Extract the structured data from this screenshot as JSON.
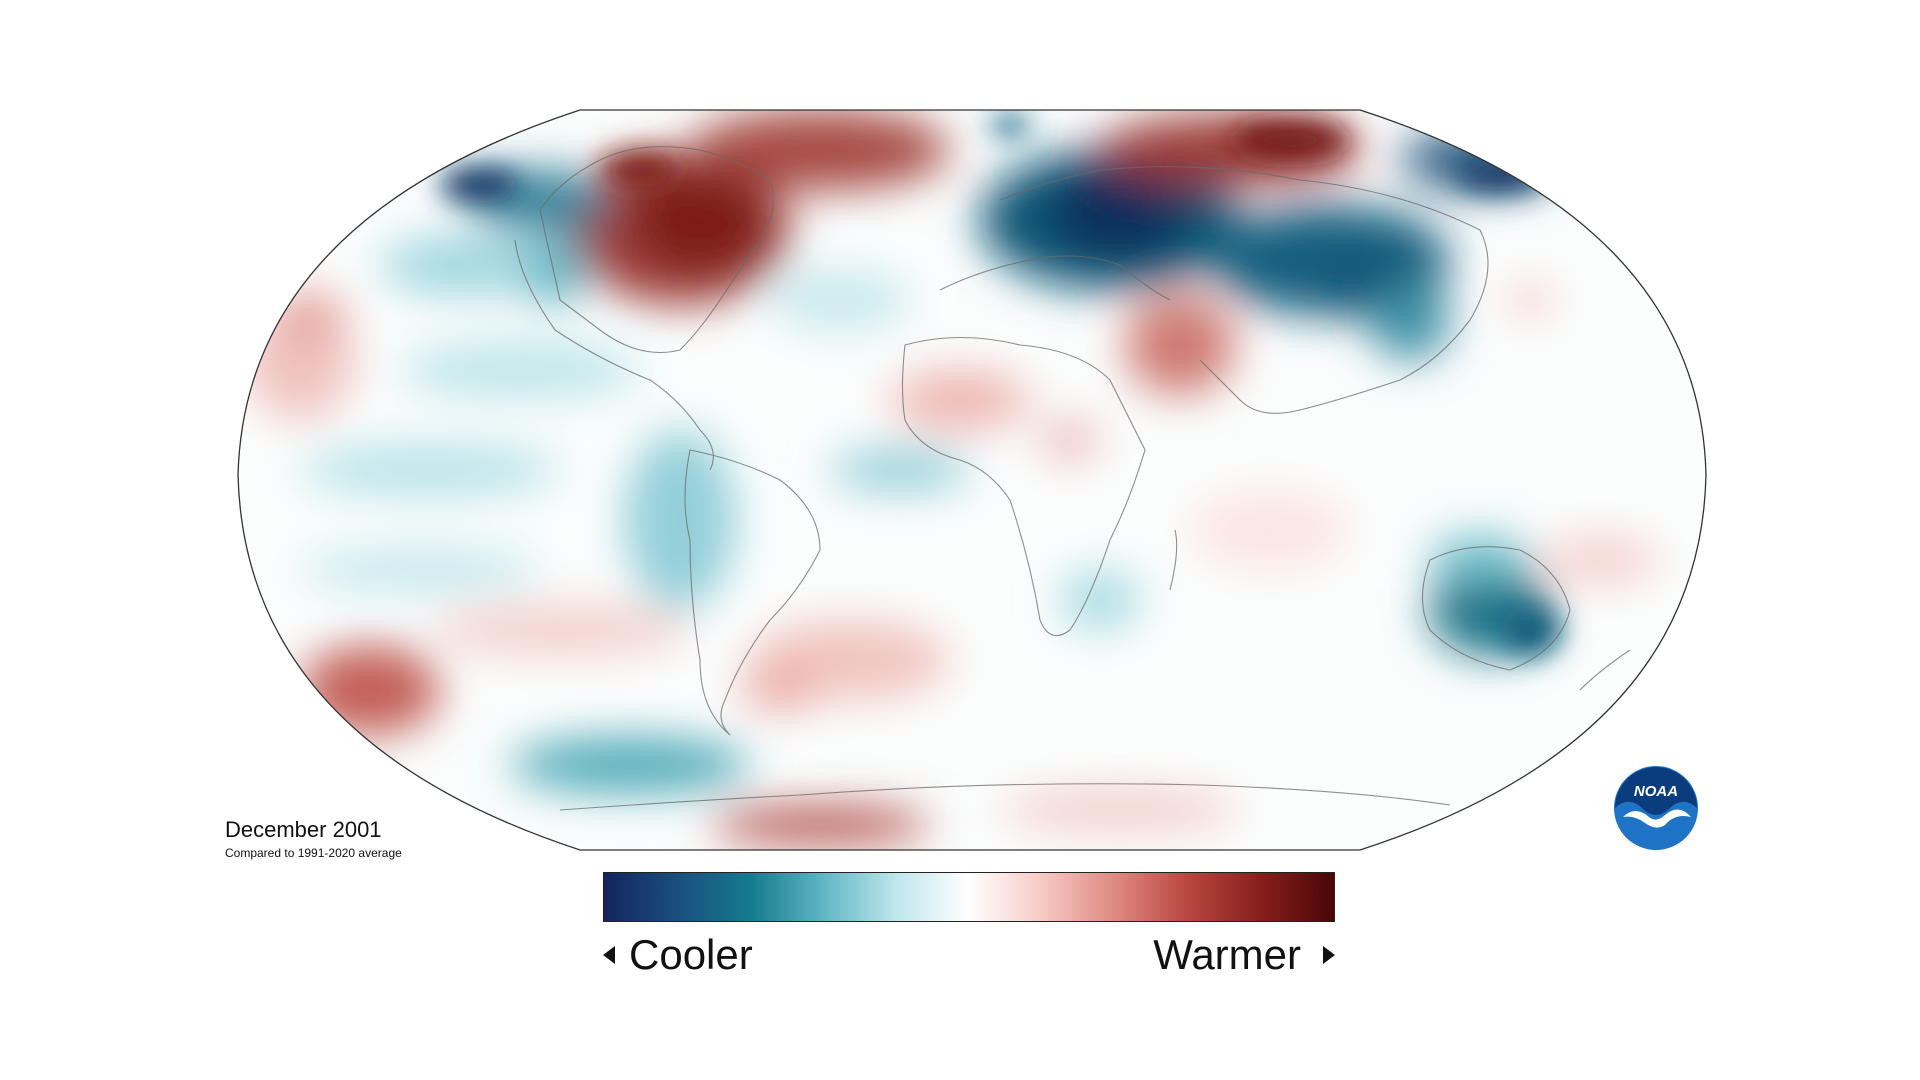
{
  "map": {
    "projection": "Robinson",
    "title": "December 2001",
    "subtitle": "Compared to 1991-2020 average"
  },
  "legend": {
    "cool_label": "Cooler",
    "warm_label": "Warmer",
    "colors": [
      "#13255c",
      "#1a4f7e",
      "#157a8e",
      "#5fb6c4",
      "#bfe6ec",
      "#ffffff",
      "#f7c9c4",
      "#de8a82",
      "#b9463f",
      "#861f1c",
      "#4a0606"
    ]
  },
  "logo": {
    "text": "NOAA",
    "icon": "noaa-logo-icon",
    "colors": [
      "#1e73c6",
      "#0a3f7f"
    ]
  }
}
